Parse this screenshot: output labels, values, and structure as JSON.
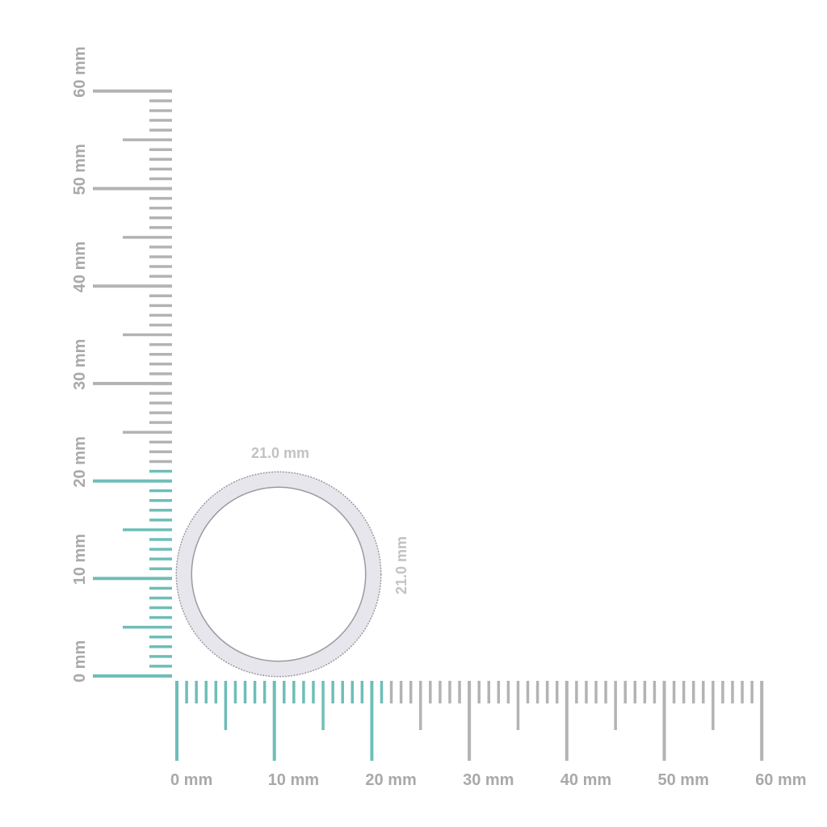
{
  "ruler": {
    "unit": "mm",
    "max_mm": 60,
    "highlight_to_mm": 21,
    "labels": [
      "0 mm",
      "10 mm",
      "20 mm",
      "30 mm",
      "40 mm",
      "50 mm",
      "60 mm"
    ],
    "colors": {
      "highlight": "#6fbdb8",
      "normal": "#b3b3b3",
      "label": "#a9a9a9"
    }
  },
  "ring": {
    "width_label": "21.0 mm",
    "height_label": "21.0 mm",
    "outer_diameter_mm": 21.0,
    "colors": {
      "band": "#e6e6ec",
      "edge": "#9a9aa2"
    }
  }
}
